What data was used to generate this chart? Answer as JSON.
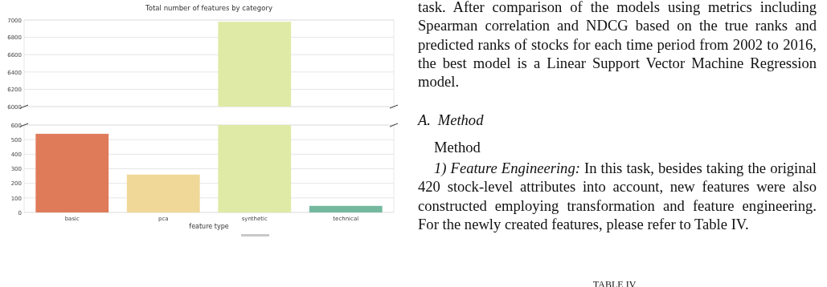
{
  "chart_data": [
    {
      "type": "bar",
      "title": "Total number of features by category",
      "categories": [
        null,
        null,
        null,
        null
      ],
      "values": [
        null,
        null,
        6980,
        null
      ],
      "color": "#dfeaa6",
      "ylim": [
        6000,
        7000
      ],
      "yticks": [
        6000,
        6200,
        6400,
        6600,
        6800,
        7000
      ],
      "grid": "y",
      "tick_labels": "y"
    },
    {
      "type": "bar",
      "xlabel": "feature type",
      "categories": [
        "basic",
        "pca",
        "synthetic",
        "technical"
      ],
      "values": [
        540,
        260,
        600,
        45
      ],
      "colors": [
        "#e07b5a",
        "#f0d898",
        "#dfeaa6",
        "#74b99f"
      ],
      "ylim": [
        0,
        600
      ],
      "yticks": [
        0,
        100,
        200,
        300,
        400,
        500,
        600
      ],
      "grid": "y"
    },
    {
      "type": "other",
      "annotations": [
        "task. After comparison of the models using metrics including Spearman correlation and NDCG based on the true ranks and predicted ranks of stocks for each time period from 2002 to 2016, the best model is a Linear Support Vector Machine Regression model.",
        "A. Method",
        "Method",
        "1) Feature Engineering:",
        "In this task, besides taking the original 420 stock-level attributes into account, new features were also constructed employing transformation and feature engineering. For the newly created features, please refer to Table IV.",
        "TABLE IV"
      ]
    }
  ]
}
